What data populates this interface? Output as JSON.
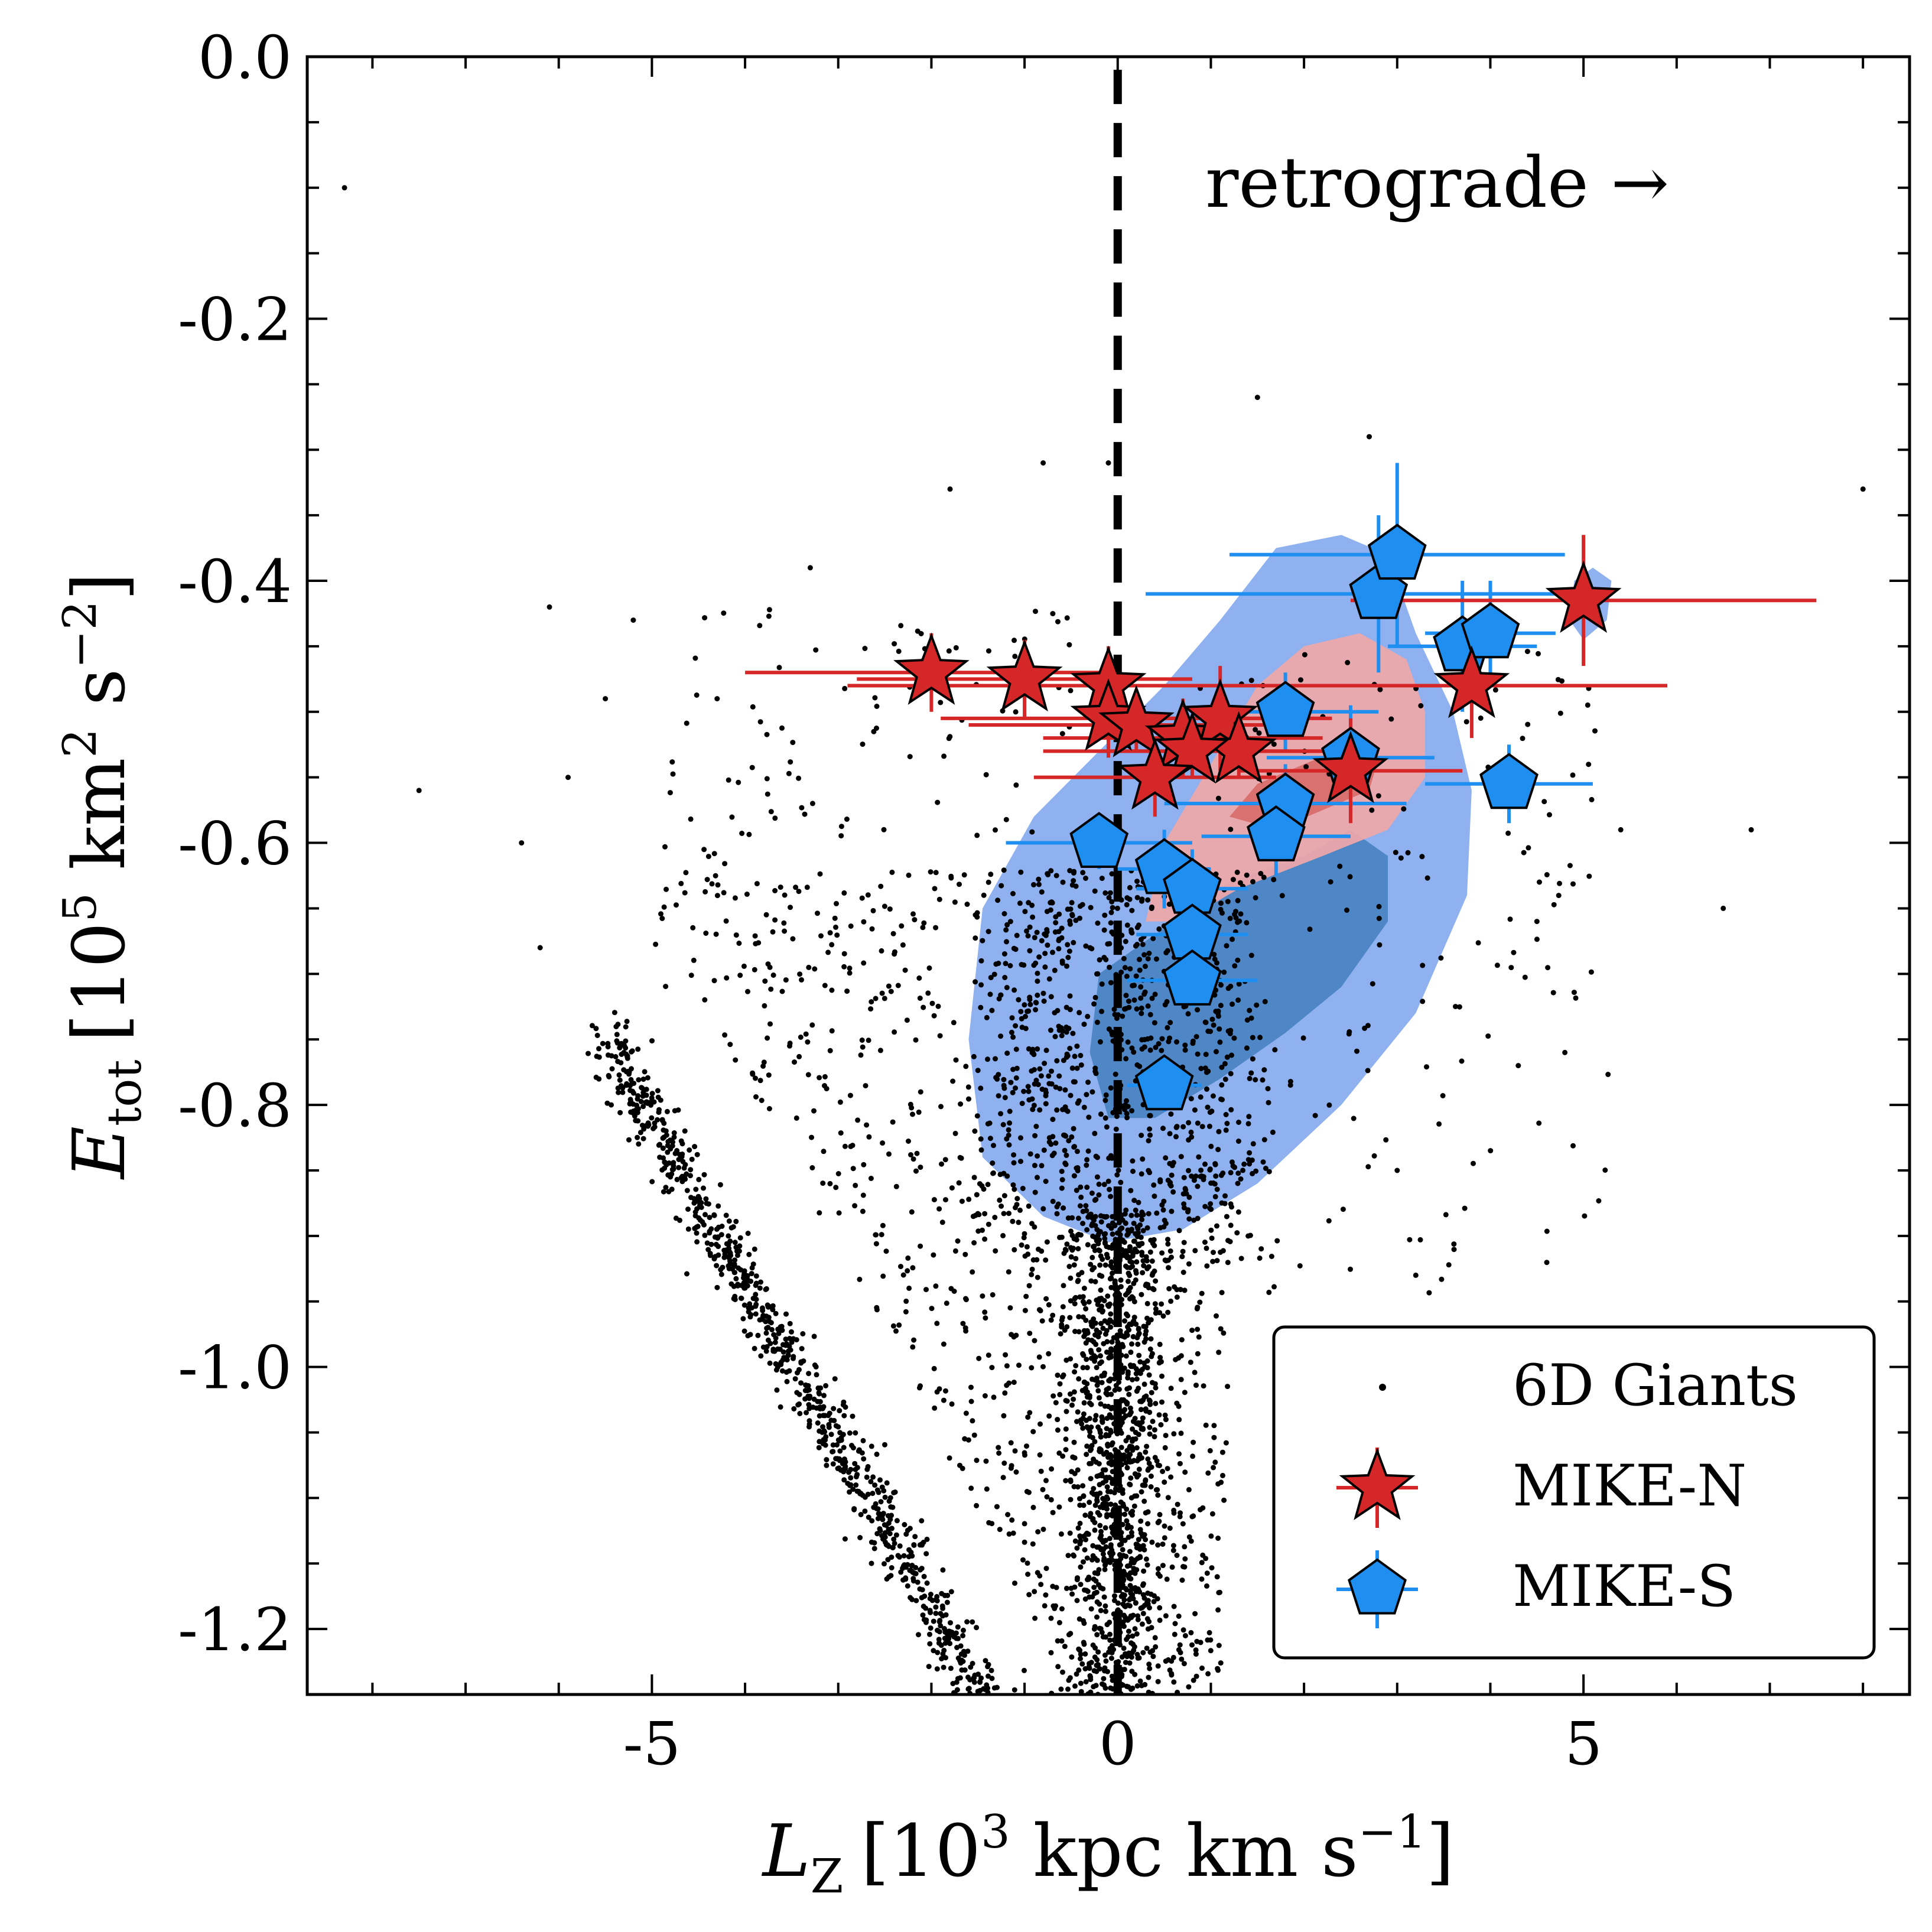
{
  "colors": {
    "giants": "#000000",
    "mike_n": "#d62728",
    "mike_s": "#1e8ff0",
    "kde_blue_outer": "#8fb1ef",
    "kde_blue_inner": "#4f86c6",
    "kde_red_outer": "#f0a8a8",
    "kde_red_inner": "#d86a6a",
    "zero_line": "#000000"
  },
  "chart_data": {
    "type": "scatter",
    "xlabel_parts": {
      "symbol": "L",
      "sub": "Z",
      "unit_pre": "[10",
      "unit_exp": "3",
      "unit_mid": " kpc km s",
      "unit_exp2": "−1",
      "unit_post": "]"
    },
    "ylabel_parts": {
      "symbol": "E",
      "sub": "tot",
      "unit_pre": "[10",
      "unit_exp": "5",
      "unit_mid": " km",
      "unit_exp2": "2",
      "unit_mid2": " s",
      "unit_exp3": "−2",
      "unit_post": "]"
    },
    "xlim": [
      -8.7,
      8.5
    ],
    "ylim": [
      -1.25,
      0.0
    ],
    "xticks": [
      -5,
      0,
      5
    ],
    "xtick_labels": [
      "-5",
      "0",
      "5"
    ],
    "yticks": [
      0.0,
      -0.2,
      -0.4,
      -0.6,
      -0.8,
      -1.0,
      -1.2
    ],
    "ytick_labels": [
      "0.0",
      "-0.2",
      "-0.4",
      "-0.6",
      "-0.8",
      "-1.0",
      "-1.2"
    ],
    "x_minor_step": 1,
    "y_minor_step": 0.05,
    "reference_line": {
      "x": 0,
      "style": "dashed"
    },
    "annotation": "retrograde →",
    "legend": {
      "position": "lower-right",
      "entries": [
        "6D Giants",
        "MIKE-N",
        "MIKE-S"
      ]
    },
    "series": [
      {
        "name": "MIKE-N",
        "marker": "star",
        "points": [
          {
            "x": -2.0,
            "y": -0.47,
            "xerr": 2.0,
            "yerr": 0.03
          },
          {
            "x": -1.0,
            "y": -0.475,
            "xerr": 1.8,
            "yerr": 0.03
          },
          {
            "x": -0.1,
            "y": -0.48,
            "xerr": 2.8,
            "yerr": 0.03
          },
          {
            "x": -0.1,
            "y": -0.505,
            "xerr": 1.8,
            "yerr": 0.03
          },
          {
            "x": 0.2,
            "y": -0.51,
            "xerr": 1.8,
            "yerr": 0.02
          },
          {
            "x": 0.7,
            "y": -0.52,
            "xerr": 1.5,
            "yerr": 0.03
          },
          {
            "x": 1.1,
            "y": -0.505,
            "xerr": 1.2,
            "yerr": 0.04
          },
          {
            "x": 1.3,
            "y": -0.53,
            "xerr": 1.5,
            "yerr": 0.02
          },
          {
            "x": 0.8,
            "y": -0.53,
            "xerr": 1.6,
            "yerr": 0.02
          },
          {
            "x": 0.4,
            "y": -0.55,
            "xerr": 1.3,
            "yerr": 0.03
          },
          {
            "x": 2.5,
            "y": -0.545,
            "xerr": 1.2,
            "yerr": 0.04
          },
          {
            "x": 3.8,
            "y": -0.48,
            "xerr": 2.1,
            "yerr": 0.04
          },
          {
            "x": 5.0,
            "y": -0.415,
            "xerr": 2.5,
            "yerr": 0.05
          }
        ]
      },
      {
        "name": "MIKE-S",
        "marker": "pentagon",
        "points": [
          {
            "x": -0.2,
            "y": -0.6,
            "xerr": 1.0,
            "yerr": 0.02
          },
          {
            "x": 0.5,
            "y": -0.62,
            "xerr": 0.5,
            "yerr": 0.03
          },
          {
            "x": 0.8,
            "y": -0.635,
            "xerr": 0.6,
            "yerr": 0.03
          },
          {
            "x": 0.8,
            "y": -0.67,
            "xerr": 0.6,
            "yerr": 0.03
          },
          {
            "x": 0.8,
            "y": -0.705,
            "xerr": 0.7,
            "yerr": 0.02
          },
          {
            "x": 0.5,
            "y": -0.785,
            "xerr": 0.4,
            "yerr": 0.02
          },
          {
            "x": 1.8,
            "y": -0.57,
            "xerr": 1.3,
            "yerr": 0.03
          },
          {
            "x": 1.7,
            "y": -0.595,
            "xerr": 0.8,
            "yerr": 0.03
          },
          {
            "x": 1.8,
            "y": -0.5,
            "xerr": 1.0,
            "yerr": 0.03
          },
          {
            "x": 2.5,
            "y": -0.535,
            "xerr": 0.9,
            "yerr": 0.04
          },
          {
            "x": 2.8,
            "y": -0.41,
            "xerr": 2.5,
            "yerr": 0.06
          },
          {
            "x": 3.0,
            "y": -0.38,
            "xerr": 1.8,
            "yerr": 0.07
          },
          {
            "x": 3.7,
            "y": -0.45,
            "xerr": 0.8,
            "yerr": 0.05
          },
          {
            "x": 4.0,
            "y": -0.44,
            "xerr": 0.7,
            "yerr": 0.04
          },
          {
            "x": 4.2,
            "y": -0.555,
            "xerr": 0.9,
            "yerr": 0.03
          }
        ]
      },
      {
        "name": "6D Giants",
        "marker": "dot",
        "description_distribution": "dense V-shaped cloud: diagonal arm from (-5.5,-0.75) to (-1.5,-1.25), central column at x≈0 from -0.9 to -1.25, scattered halo stars",
        "sample_points": [
          [
            -8.3,
            -0.1
          ],
          [
            -7.5,
            -0.56
          ],
          [
            -6.4,
            -0.6
          ],
          [
            -6.1,
            -0.42
          ],
          [
            -5.2,
            -0.43
          ],
          [
            -4.3,
            -0.49
          ],
          [
            -5.9,
            -0.55
          ],
          [
            -5.5,
            -0.49
          ],
          [
            -6.2,
            -0.68
          ],
          [
            -3.3,
            -0.39
          ],
          [
            -1.8,
            -0.33
          ],
          [
            -0.8,
            -0.31
          ],
          [
            -0.1,
            -0.31
          ],
          [
            1.5,
            -0.26
          ],
          [
            2.7,
            -0.29
          ],
          [
            8.0,
            -0.33
          ],
          [
            6.8,
            -0.59
          ],
          [
            6.5,
            -0.65
          ],
          [
            4.5,
            -0.66
          ],
          [
            4.3,
            -0.77
          ],
          [
            4.8,
            -0.76
          ],
          [
            3.2,
            -0.93
          ],
          [
            3.0,
            -0.85
          ],
          [
            5.4,
            -0.59
          ]
        ]
      }
    ],
    "density_contours": [
      {
        "name": "MIKE-S density (outer)",
        "color_key": "kde_blue_outer"
      },
      {
        "name": "MIKE-S density (inner)",
        "color_key": "kde_blue_inner"
      },
      {
        "name": "MIKE-N density (outer)",
        "color_key": "kde_red_outer"
      },
      {
        "name": "MIKE-N density (inner)",
        "color_key": "kde_red_inner"
      }
    ]
  }
}
